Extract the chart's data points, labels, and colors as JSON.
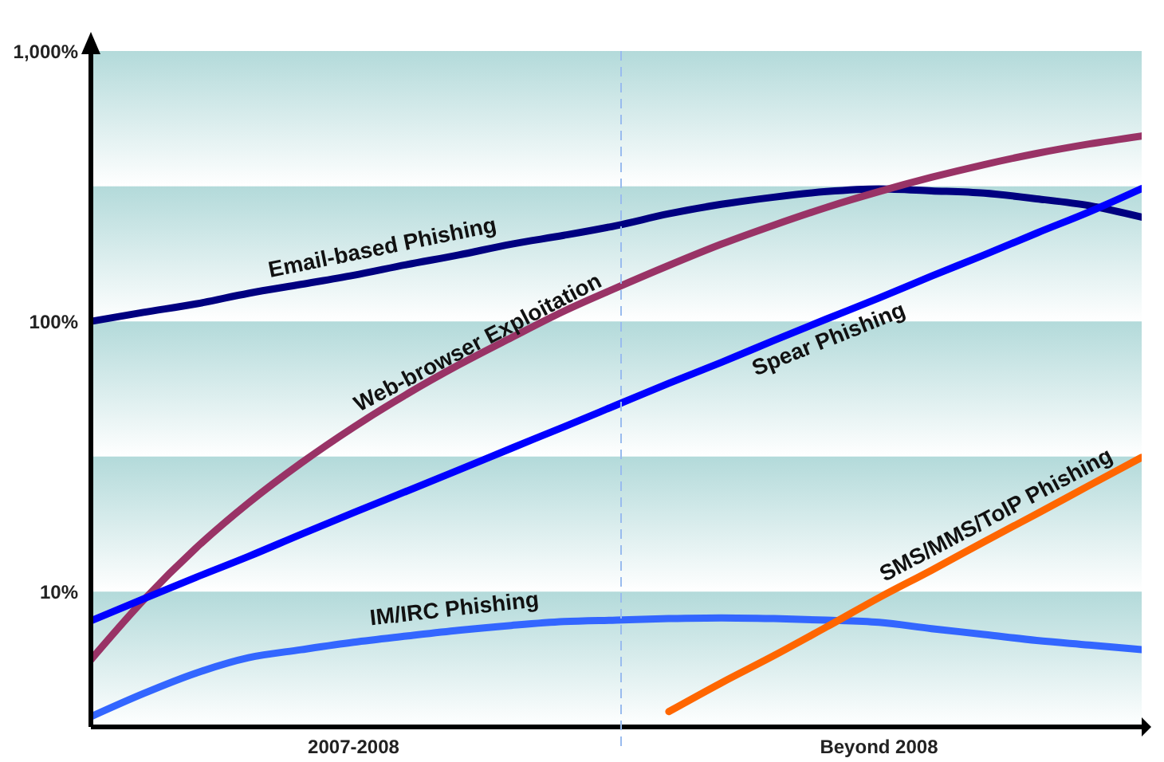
{
  "chart_data": {
    "type": "line",
    "log": "y",
    "categories": [
      null,
      null,
      null,
      null,
      null,
      "2007-2008",
      null,
      null,
      null,
      null,
      null,
      null,
      null,
      null,
      null,
      "Beyond 2008",
      null,
      null,
      null,
      null,
      null
    ],
    "ylim": [
      3.16,
      1000
    ],
    "yticks": [
      {
        "value": 10,
        "label": "10%"
      },
      {
        "value": 100,
        "label": "100%"
      },
      {
        "value": 1000,
        "label": "1,000%"
      }
    ],
    "grid": false,
    "legend": false,
    "marker": "none",
    "line_style": "solid",
    "series": [
      {
        "name": "Email-based Phishing",
        "color": "#000080",
        "values": [
          100,
          108,
          116,
          127,
          137,
          148,
          162,
          176,
          193,
          208,
          226,
          250,
          271,
          288,
          302,
          309,
          304,
          298,
          284,
          268,
          243
        ]
      },
      {
        "name": "Web-browser Exploitation",
        "color": "#993366",
        "values": [
          5.6,
          9.3,
          14.5,
          21.3,
          29.9,
          40.6,
          53.6,
          69,
          87,
          109,
          133,
          161,
          193,
          227,
          264,
          302,
          341,
          380,
          418,
          453,
          485
        ]
      },
      {
        "name": "Spear Phishing",
        "color": "#0000ff",
        "values": [
          7.8,
          9.4,
          11.3,
          13.5,
          16.3,
          19.6,
          23.5,
          28.2,
          33.9,
          40.7,
          49,
          59,
          70.5,
          85,
          102,
          122,
          147,
          176,
          212,
          254,
          310
        ]
      },
      {
        "name": "IM/IRC Phishing",
        "color": "#3366ff",
        "values": [
          3.45,
          4.2,
          5.0,
          5.7,
          6.1,
          6.5,
          6.85,
          7.2,
          7.5,
          7.75,
          7.85,
          7.95,
          8.0,
          7.95,
          7.85,
          7.7,
          7.3,
          6.95,
          6.6,
          6.35,
          6.1
        ]
      },
      {
        "name": "SMS/MMS/ToIP Phishing",
        "color": "#ff6600",
        "values": [
          null,
          null,
          null,
          null,
          null,
          null,
          null,
          null,
          null,
          null,
          null,
          3.6,
          4.6,
          5.8,
          7.4,
          9.5,
          12,
          15.3,
          19.4,
          24.7,
          31.4
        ]
      }
    ],
    "bands": [
      {
        "axis": "y",
        "from": 316,
        "to": 1000,
        "color": "#b3dada"
      },
      {
        "axis": "y",
        "from": 100,
        "to": 316,
        "color": "#b3dada"
      },
      {
        "axis": "y",
        "from": 31.6,
        "to": 100,
        "color": "#b3dada"
      },
      {
        "axis": "y",
        "from": 10,
        "to": 31.6,
        "color": "#b3dada"
      },
      {
        "axis": "y",
        "from": 3.16,
        "to": 10,
        "color": "#b3dada"
      }
    ]
  }
}
